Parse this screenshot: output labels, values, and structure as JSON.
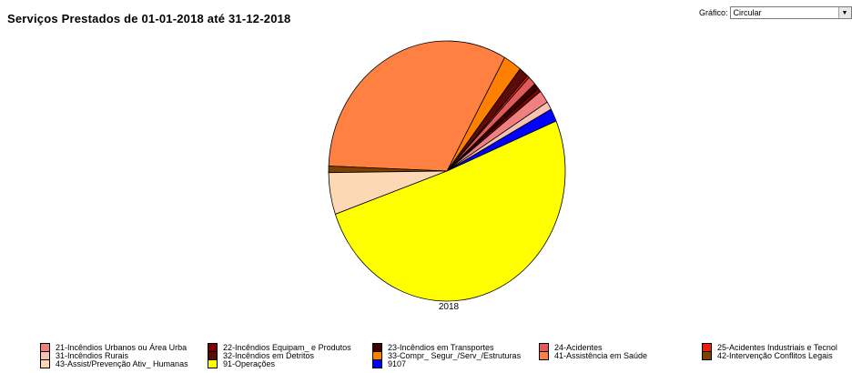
{
  "chart_data": {
    "type": "pie",
    "title": "Serviços Prestados de 01-01-2018 até 31-12-2018",
    "category_label": "2018",
    "legend_position": "bottom",
    "slices": [
      {
        "name": "21-Incêndios Urbanos ou Área Urba",
        "value": 1.6,
        "color": "#f08080"
      },
      {
        "name": "22-Incêndios Equipam_ e Produtos",
        "value": 0.5,
        "color": "#7a0000"
      },
      {
        "name": "23-Incêndios em Transportes",
        "value": 0.7,
        "color": "#3c0000"
      },
      {
        "name": "24-Acidentes",
        "value": 1.1,
        "color": "#e05a5a"
      },
      {
        "name": "25-Acidentes Industriais e Tecnol",
        "value": 0.3,
        "color": "#e8220a"
      },
      {
        "name": "31-Incêndios Rurais",
        "value": 1.0,
        "color": "#f6c2b4"
      },
      {
        "name": "32-Incêndios em Detritos",
        "value": 1.3,
        "color": "#5c0a0a"
      },
      {
        "name": "33-Compr_ Segur_/Serv_/Estruturas",
        "value": 2.5,
        "color": "#ff8000"
      },
      {
        "name": "41-Assistência em Saúde",
        "value": 32.5,
        "color": "#ff8040"
      },
      {
        "name": "42-Intervenção Conflitos Legais",
        "value": 0.8,
        "color": "#804000"
      },
      {
        "name": "43-Assist/Prevenção Ativ_ Humanas",
        "value": 5.2,
        "color": "#fcd8b4"
      },
      {
        "name": "91-Operações",
        "value": 50.9,
        "color": "#ffff00"
      },
      {
        "name": "9107",
        "value": 1.6,
        "color": "#0000ff"
      }
    ],
    "draw_order": [
      0,
      1,
      2,
      3,
      4,
      6,
      7,
      8,
      9,
      10,
      11,
      12,
      5
    ]
  },
  "controls": {
    "chart_type_label": "Gráfico:",
    "chart_type_value": "Circular",
    "dropdown_icon": "chevron-down-icon"
  }
}
